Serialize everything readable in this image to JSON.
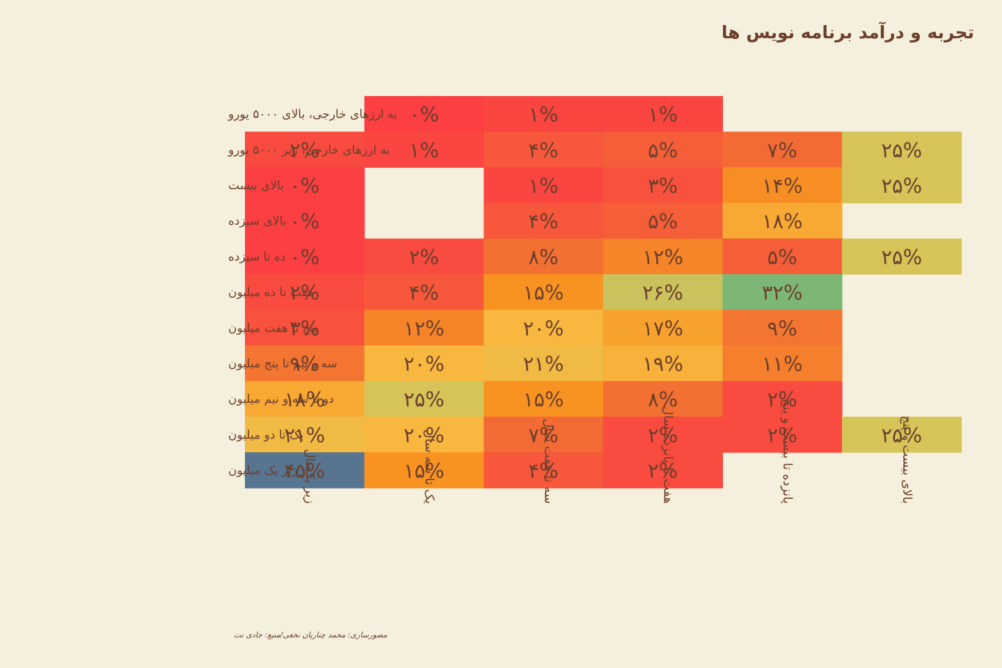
{
  "title": "تجربه و درآمد برنامه نویس ها",
  "source": "مصورسازی: محمد چناریان نخعی/منبع: جادی نت",
  "chart_data": {
    "type": "heatmap",
    "title": "تجربه و درآمد برنامه نویس ها",
    "rows": [
      "به ارزهای خارجی، بالای ۵۰۰۰ یورو",
      "به ارزهای خارجی، زیر ۵۰۰۰ یورو",
      "بالای بیست",
      "بالای سیزده",
      "ده تا سیزده",
      "هفت تا ده میلیون",
      "پنج تا هفت میلیون",
      "سه و نیم تا پنج میلیون",
      "دو تا سه و نیم میلیون",
      "یک تا دو میلیون",
      "زیر یک میلیون"
    ],
    "columns": [
      "زیر یکسال",
      "یک تا سه سال",
      "سه تا هفت سال",
      "هفت تا پانزده سال",
      "پانزده تا بیست و پنج",
      "بالای بیست و پنج"
    ],
    "values": [
      [
        null,
        0,
        1,
        1,
        null,
        null
      ],
      [
        2,
        1,
        4,
        5,
        7,
        25
      ],
      [
        0,
        null,
        1,
        3,
        14,
        25
      ],
      [
        0,
        null,
        4,
        5,
        18,
        null
      ],
      [
        0,
        2,
        8,
        12,
        5,
        25
      ],
      [
        2,
        4,
        15,
        26,
        32,
        null
      ],
      [
        3,
        12,
        20,
        17,
        9,
        null
      ],
      [
        9,
        20,
        21,
        19,
        11,
        null
      ],
      [
        18,
        25,
        15,
        8,
        2,
        null
      ],
      [
        21,
        20,
        7,
        2,
        2,
        25
      ],
      [
        45,
        15,
        4,
        2,
        null,
        null
      ]
    ],
    "labels": [
      [
        null,
        "۰%",
        "۱%",
        "۱%",
        null,
        null
      ],
      [
        "۲%",
        "۱%",
        "۴%",
        "۵%",
        "۷%",
        "۲۵%"
      ],
      [
        "۰%",
        null,
        "۱%",
        "۳%",
        "۱۴%",
        "۲۵%"
      ],
      [
        "۰%",
        null,
        "۴%",
        "۵%",
        "۱۸%",
        null
      ],
      [
        "۰%",
        "۲%",
        "۸%",
        "۱۲%",
        "۵%",
        "۲۵%"
      ],
      [
        "۲%",
        "۴%",
        "۱۵%",
        "۲۶%",
        "۳۲%",
        null
      ],
      [
        "۳%",
        "۱۲%",
        "۲۰%",
        "۱۷%",
        "۹%",
        null
      ],
      [
        "۹%",
        "۲۰%",
        "۲۱%",
        "۱۹%",
        "۱۱%",
        null
      ],
      [
        "۱۸%",
        "۲۵%",
        "۱۵%",
        "۸%",
        "۲%",
        null
      ],
      [
        "۲۱%",
        "۲۰%",
        "۷%",
        "۲%",
        "۲%",
        "۲۵%"
      ],
      [
        "۴۵%",
        "۱۵%",
        "۴%",
        "۲%",
        null,
        null
      ]
    ],
    "unit": "%",
    "color_scale": [
      {
        "v": 0,
        "color": "#fb3f43"
      },
      {
        "v": 8,
        "color": "#f37033"
      },
      {
        "v": 15,
        "color": "#f89322"
      },
      {
        "v": 20,
        "color": "#f8b840"
      },
      {
        "v": 25,
        "color": "#d6c459"
      },
      {
        "v": 32,
        "color": "#7db775"
      },
      {
        "v": 45,
        "color": "#577590"
      }
    ],
    "text_color": "#6b3f2c",
    "background": "#f5f0dd"
  }
}
